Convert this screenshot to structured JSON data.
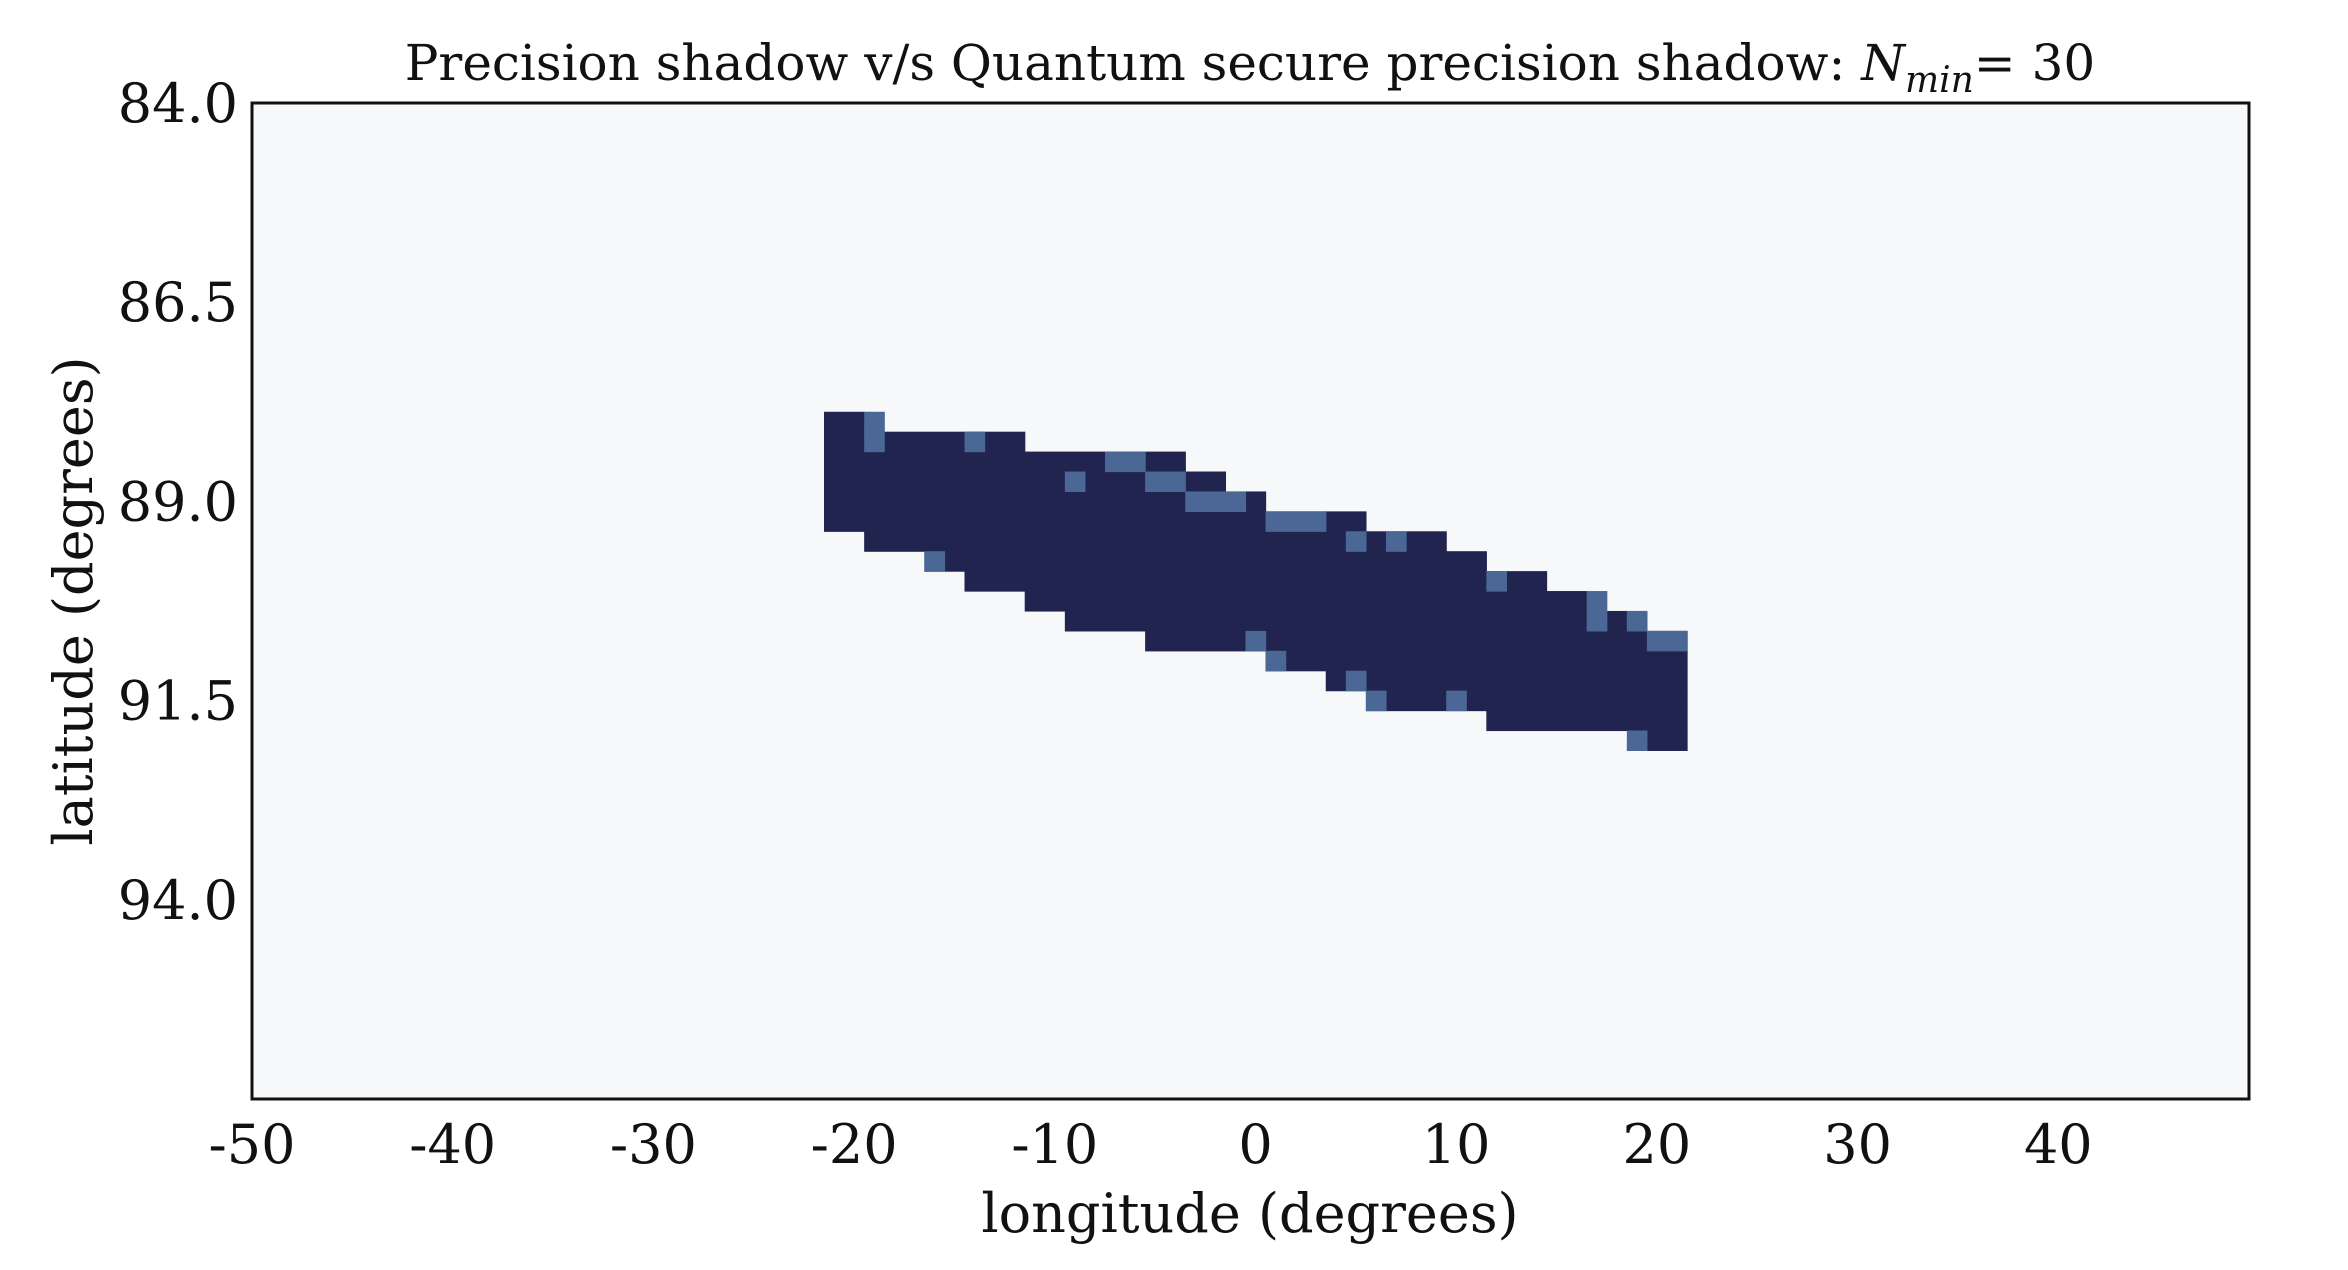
{
  "chart_data": {
    "type": "heatmap",
    "title": "Precision shadow v/s Quantum secure precision shadow: ",
    "title_math": {
      "base": "N",
      "subscript": "min",
      "equals": "= 30"
    },
    "xlabel": "longitude (degrees)",
    "ylabel": "latitude (degrees)",
    "xlim": [
      -50,
      49.5
    ],
    "ylim": [
      84.0,
      96.5
    ],
    "y_inverted": true,
    "x_ticks": [
      -50,
      -40,
      -30,
      -20,
      -10,
      0,
      10,
      20,
      30,
      40
    ],
    "x_tick_labels": [
      "-50",
      "-40",
      "-30",
      "-20",
      "-10",
      "0",
      "10",
      "20",
      "30",
      "40"
    ],
    "y_ticks": [
      84.0,
      86.5,
      89.0,
      91.5,
      94.0
    ],
    "y_tick_labels": [
      "84.0",
      "86.5",
      "89.0",
      "91.5",
      "94.0"
    ],
    "grid": false,
    "cell_width_deg": 1.0,
    "cell_height_deg": 0.25,
    "colors": {
      "background": "#f7f8fa",
      "precision_shadow": "#21244f",
      "quantum_secure_only": "#4a6796"
    },
    "series": [
      {
        "value": 1,
        "rows": [
          {
            "lat": 88.0,
            "lon_start": -21.5,
            "lon_end": -19.5
          },
          {
            "lat": 88.25,
            "lon_start": -21.5,
            "lon_end": -11.5
          },
          {
            "lat": 88.5,
            "lon_start": -21.5,
            "lon_end": -3.5
          },
          {
            "lat": 88.75,
            "lon_start": -21.5,
            "lon_end": -1.5
          },
          {
            "lat": 89.0,
            "lon_start": -21.5,
            "lon_end": 0.5
          },
          {
            "lat": 89.25,
            "lon_start": -21.5,
            "lon_end": 5.5
          },
          {
            "lat": 89.5,
            "lon_start": -19.5,
            "lon_end": 9.5
          },
          {
            "lat": 89.75,
            "lon_start": -16.5,
            "lon_end": 11.5
          },
          {
            "lat": 90.0,
            "lon_start": -14.5,
            "lon_end": 14.5
          },
          {
            "lat": 90.25,
            "lon_start": -11.5,
            "lon_end": 16.5
          },
          {
            "lat": 90.5,
            "lon_start": -9.5,
            "lon_end": 19.5
          },
          {
            "lat": 90.75,
            "lon_start": -5.5,
            "lon_end": 21.5
          },
          {
            "lat": 91.0,
            "lon_start": 0.5,
            "lon_end": 21.5
          },
          {
            "lat": 91.25,
            "lon_start": 3.5,
            "lon_end": 21.5
          },
          {
            "lat": 91.5,
            "lon_start": 5.5,
            "lon_end": 21.5
          },
          {
            "lat": 91.75,
            "lon_start": 11.5,
            "lon_end": 21.5
          },
          {
            "lat": 92.0,
            "lon_start": 19.5,
            "lon_end": 21.5
          }
        ]
      },
      {
        "value": 2,
        "cells": [
          {
            "lat": 88.0,
            "lon_start": -19.5,
            "lon_end": -18.5
          },
          {
            "lat": 88.25,
            "lon_start": -19.5,
            "lon_end": -18.5
          },
          {
            "lat": 88.25,
            "lon_start": -14.5,
            "lon_end": -13.5
          },
          {
            "lat": 88.5,
            "lon_start": -7.5,
            "lon_end": -5.5
          },
          {
            "lat": 88.75,
            "lon_start": -9.5,
            "lon_end": -8.5
          },
          {
            "lat": 88.75,
            "lon_start": -5.5,
            "lon_end": -3.5
          },
          {
            "lat": 89.0,
            "lon_start": -3.5,
            "lon_end": -0.5
          },
          {
            "lat": 89.25,
            "lon_start": 0.5,
            "lon_end": 3.5
          },
          {
            "lat": 89.5,
            "lon_start": 4.5,
            "lon_end": 5.5
          },
          {
            "lat": 89.5,
            "lon_start": 6.5,
            "lon_end": 7.5
          },
          {
            "lat": 89.75,
            "lon_start": -16.5,
            "lon_end": -15.5
          },
          {
            "lat": 90.0,
            "lon_start": 11.5,
            "lon_end": 12.5
          },
          {
            "lat": 90.25,
            "lon_start": 16.5,
            "lon_end": 17.5
          },
          {
            "lat": 90.5,
            "lon_start": 16.5,
            "lon_end": 17.5
          },
          {
            "lat": 90.5,
            "lon_start": 18.5,
            "lon_end": 19.5
          },
          {
            "lat": 90.75,
            "lon_start": -0.5,
            "lon_end": 0.5
          },
          {
            "lat": 90.75,
            "lon_start": 19.5,
            "lon_end": 21.5
          },
          {
            "lat": 91.0,
            "lon_start": 0.5,
            "lon_end": 1.5
          },
          {
            "lat": 91.25,
            "lon_start": 4.5,
            "lon_end": 5.5
          },
          {
            "lat": 91.5,
            "lon_start": 5.5,
            "lon_end": 6.5
          },
          {
            "lat": 91.5,
            "lon_start": 9.5,
            "lon_end": 10.5
          },
          {
            "lat": 92.0,
            "lon_start": 18.5,
            "lon_end": 19.5
          }
        ]
      }
    ]
  }
}
